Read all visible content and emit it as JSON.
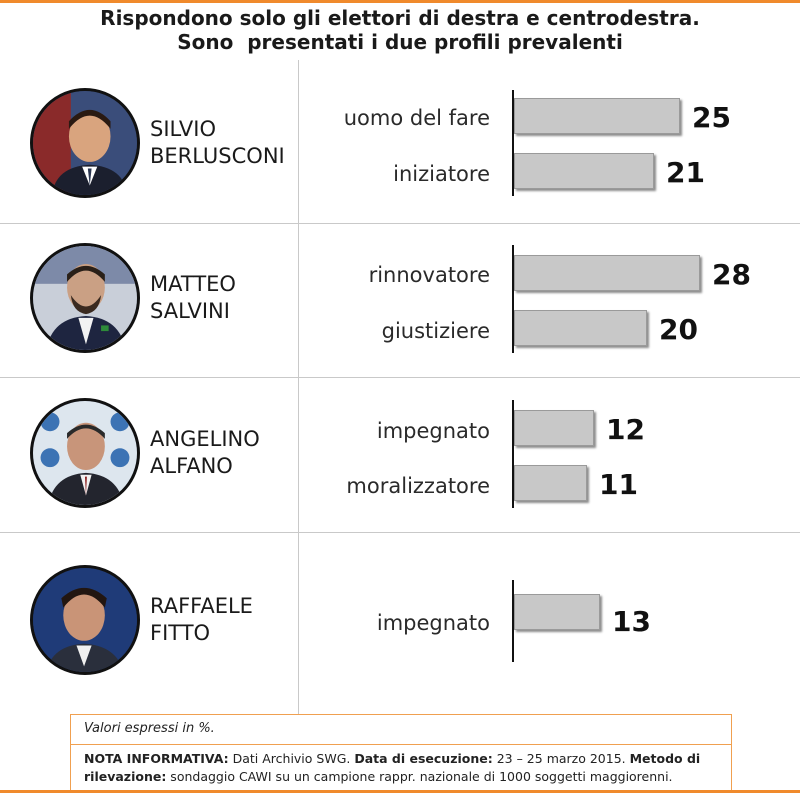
{
  "title": {
    "line1": "Rispondono solo gli elettori di destra e centrodestra.",
    "line2": "Sono  presentati i due profili prevalenti"
  },
  "colors": {
    "accent": "#f08a2c",
    "bar": "#c8c8c8",
    "divider": "#c9c9c9"
  },
  "chart_data": {
    "type": "bar",
    "orientation": "horizontal",
    "unit": "%",
    "groups": [
      {
        "first": "SILVIO",
        "last": "BERLUSCONI",
        "bars": [
          {
            "label": "uomo del fare",
            "value": 25
          },
          {
            "label": "iniziatore",
            "value": 21
          }
        ]
      },
      {
        "first": "MATTEO",
        "last": "SALVINI",
        "bars": [
          {
            "label": "rinnovatore",
            "value": 28
          },
          {
            "label": "giustiziere",
            "value": 20
          }
        ]
      },
      {
        "first": "ANGELINO",
        "last": "ALFANO",
        "bars": [
          {
            "label": "impegnato",
            "value": 12
          },
          {
            "label": "moralizzatore",
            "value": 11
          }
        ]
      },
      {
        "first": "RAFFAELE",
        "last": "FITTO",
        "bars": [
          {
            "label": "impegnato",
            "value": 13
          }
        ]
      }
    ]
  },
  "note": {
    "units": "Valori espressi in %.",
    "info_label": "NOTA INFORMATIVA:",
    "info_text": " Dati Archivio SWG. ",
    "date_label": "Data di esecuzione:",
    "date_text": " 23 – 25 marzo 2015. ",
    "method_label": "Metodo di rilevazione:",
    "method_text": " sondaggio CAWI su un campione rappr. nazionale di 1000 soggetti maggiorenni."
  }
}
